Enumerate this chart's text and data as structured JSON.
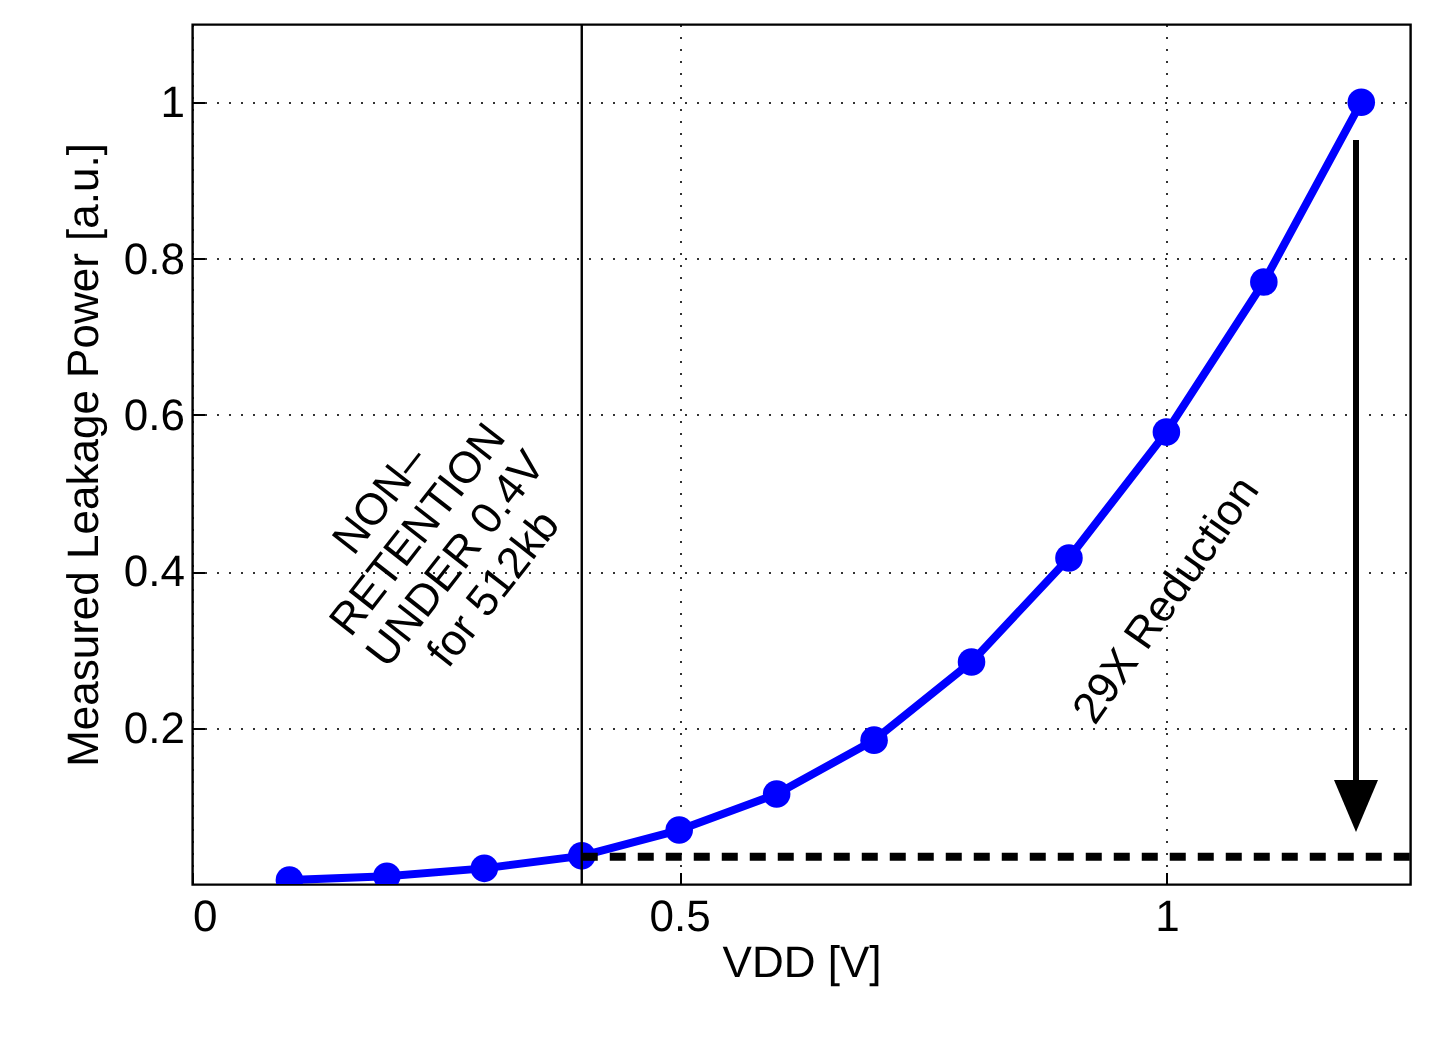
{
  "chart_data": {
    "type": "line",
    "xlabel": "VDD [V]",
    "ylabel": "Measured Leakage Power [a.u.]",
    "xlim": [
      0,
      1.25
    ],
    "ylim": [
      0,
      1.1
    ],
    "xticks": [
      0,
      0.5,
      1
    ],
    "yticks": [
      0.2,
      0.4,
      0.6,
      0.8,
      1
    ],
    "grid": true,
    "series": [
      {
        "color": "#0000ff",
        "marker": "circle",
        "line_style": "solid",
        "x": [
          0.1,
          0.2,
          0.3,
          0.4,
          0.5,
          0.6,
          0.7,
          0.8,
          0.9,
          1.0,
          1.1,
          1.2
        ],
        "values": [
          0.005,
          0.01,
          0.02,
          0.036,
          0.069,
          0.115,
          0.184,
          0.284,
          0.417,
          0.578,
          0.77,
          1.0
        ]
      },
      {
        "color": "#000000",
        "marker": "none",
        "line_style": "dashed",
        "x": [
          0.4,
          1.25
        ],
        "values": [
          0.035,
          0.035
        ]
      }
    ],
    "ref_lines": [
      {
        "axis": "x",
        "value": 0.4,
        "color": "#000000"
      }
    ],
    "annotations": [
      "NON–\nRETENTION\nUNDER 0.4V\nfor 512kb",
      "29X Reduction"
    ]
  }
}
